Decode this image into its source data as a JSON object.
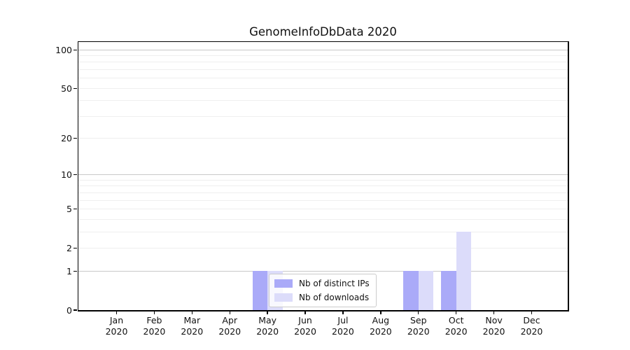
{
  "chart_data": {
    "type": "bar",
    "title": "GenomeInfoDbData 2020",
    "categories": [
      "Jan 2020",
      "Feb 2020",
      "Mar 2020",
      "Apr 2020",
      "May 2020",
      "Jun 2020",
      "Jul 2020",
      "Aug 2020",
      "Sep 2020",
      "Oct 2020",
      "Nov 2020",
      "Dec 2020"
    ],
    "series": [
      {
        "name": "Nb of distinct IPs",
        "color": "#aaaaf8",
        "values": [
          0,
          0,
          0,
          0,
          1,
          0,
          0,
          0,
          1,
          1,
          0,
          0
        ]
      },
      {
        "name": "Nb of downloads",
        "color": "#dcdcfa",
        "values": [
          0,
          0,
          0,
          0,
          1,
          0,
          0,
          0,
          1,
          3,
          0,
          0
        ]
      }
    ],
    "xlabel": "",
    "ylabel": "",
    "yscale": "log1p",
    "ylim": [
      0,
      115
    ],
    "y_ticks": [
      0,
      1,
      2,
      5,
      10,
      20,
      50,
      100
    ],
    "y_major_gridlines": [
      1,
      10,
      100
    ],
    "y_minor_gridlines": [
      2,
      3,
      4,
      5,
      6,
      7,
      8,
      9,
      20,
      30,
      40,
      50,
      60,
      70,
      80,
      90
    ],
    "grid": true,
    "legend_position": "lower center-left, overlapping May bars"
  },
  "colors": {
    "bar_distinct_ips": "#aaaaf8",
    "bar_downloads": "#dcdcfa",
    "grid_major": "#c9c9c9",
    "grid_minor": "#efefef",
    "axis": "#000000",
    "legend_border": "#cccccc"
  }
}
